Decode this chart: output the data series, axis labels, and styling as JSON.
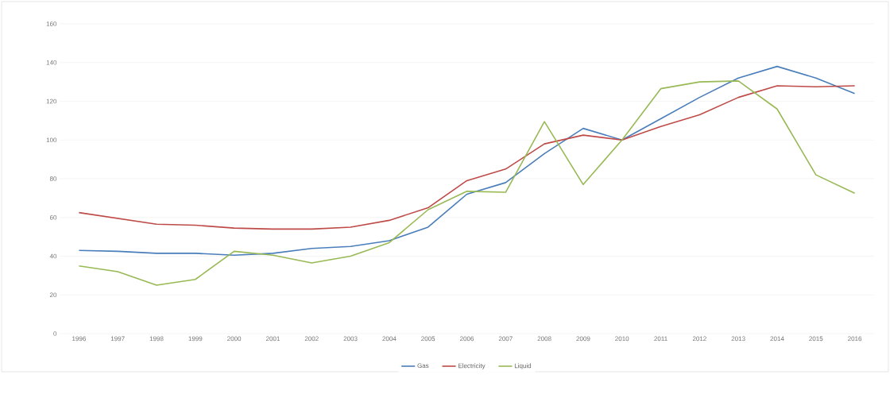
{
  "chart_data": {
    "type": "line",
    "categories": [
      "1996",
      "1997",
      "1998",
      "1999",
      "2000",
      "2001",
      "2002",
      "2003",
      "2004",
      "2005",
      "2006",
      "2007",
      "2008",
      "2009",
      "2010",
      "2011",
      "2012",
      "2013",
      "2014",
      "2015",
      "2016"
    ],
    "series": [
      {
        "name": "Gas",
        "color": "#4a7ebb",
        "values": [
          43,
          42.5,
          41.5,
          41.5,
          40.5,
          41.5,
          44,
          45,
          48,
          55,
          72,
          78,
          93,
          106,
          100,
          111,
          122,
          132,
          138,
          132,
          124
        ]
      },
      {
        "name": "Electricity",
        "color": "#be4b48",
        "values": [
          62.5,
          59.5,
          56.5,
          56,
          54.5,
          54,
          54,
          55,
          58.5,
          65,
          79,
          85,
          98,
          102.5,
          100,
          107,
          113,
          122,
          128,
          127.5,
          128
        ]
      },
      {
        "name": "Liquid",
        "color": "#98b954",
        "values": [
          35,
          32,
          25,
          28,
          42.5,
          40.5,
          36.5,
          40,
          47,
          64,
          73.5,
          73,
          109.5,
          77,
          100,
          126.5,
          130,
          130.5,
          116,
          82,
          72.5
        ]
      }
    ],
    "ylim": [
      0,
      160
    ],
    "yticks": [
      0,
      20,
      40,
      60,
      80,
      100,
      120,
      140,
      160
    ],
    "grid": "y",
    "legend": "bottom",
    "marker": "none",
    "line_style": "solid"
  }
}
